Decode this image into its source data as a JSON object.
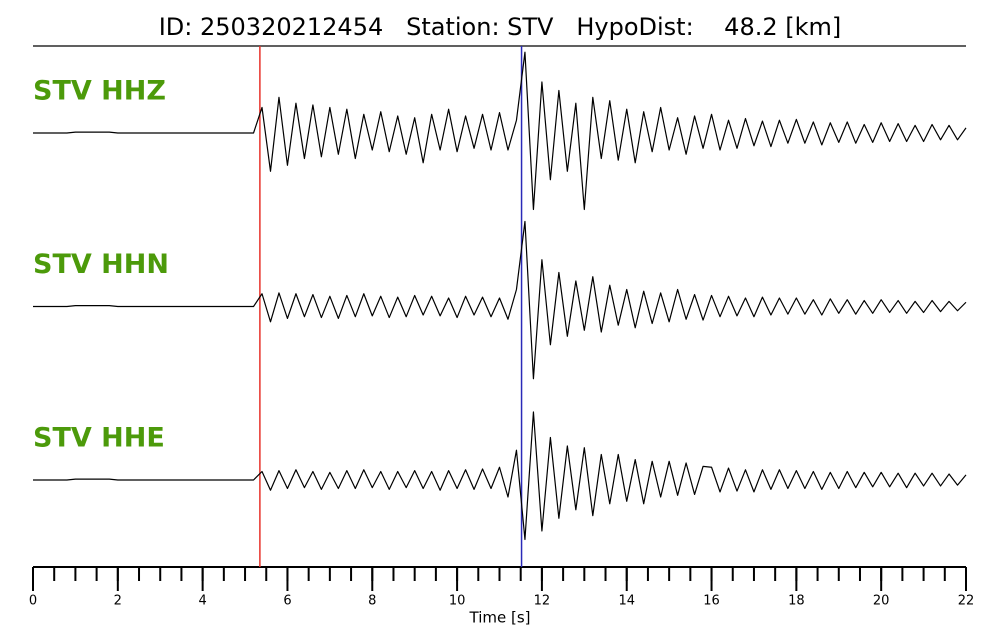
{
  "chart_data": {
    "type": "seismogram",
    "title": "ID: 250320212454   Station: STV   HypoDist:    48.2 [km]",
    "xlabel": "Time [s]",
    "xlim": [
      0,
      22
    ],
    "xticks": [
      0,
      2,
      4,
      6,
      8,
      10,
      12,
      14,
      16,
      18,
      20,
      22
    ],
    "xminorticks": [
      0,
      0.5,
      1,
      1.5,
      2,
      2.5,
      3,
      3.5,
      4,
      4.5,
      5,
      5.5,
      6,
      6.5,
      7,
      7.5,
      8,
      8.5,
      9,
      9.5,
      10,
      10.5,
      11,
      11.5,
      12,
      12.5,
      13,
      13.5,
      14,
      14.5,
      15,
      15.5,
      16,
      16.5,
      17,
      17.5,
      18,
      18.5,
      19,
      19.5,
      20,
      20.5,
      21,
      21.5,
      22
    ],
    "ylim": [
      -1,
      1
    ],
    "label_color": "#4c9a0a",
    "trace_color": "#000000",
    "picks": [
      {
        "time": 5.35,
        "color": "#e8322a"
      },
      {
        "time": 11.52,
        "color": "#2a2ab8"
      }
    ],
    "x": [
      0,
      0.2,
      0.4,
      0.6,
      0.8,
      1,
      1.2,
      1.4,
      1.6,
      1.8,
      2,
      2.2,
      2.4,
      2.6,
      2.8,
      3,
      3.2,
      3.4,
      3.6,
      3.8,
      4,
      4.2,
      4.4,
      4.6,
      4.8,
      5,
      5.2,
      5.4,
      5.6,
      5.8,
      6,
      6.2,
      6.4,
      6.6,
      6.8,
      7,
      7.2,
      7.4,
      7.6,
      7.8,
      8,
      8.2,
      8.4,
      8.6,
      8.8,
      9,
      9.2,
      9.4,
      9.6,
      9.8,
      10,
      10.2,
      10.4,
      10.6,
      10.8,
      11,
      11.2,
      11.4,
      11.6,
      11.8,
      12,
      12.2,
      12.4,
      12.6,
      12.8,
      13,
      13.2,
      13.4,
      13.6,
      13.8,
      14,
      14.2,
      14.4,
      14.6,
      14.8,
      15,
      15.2,
      15.4,
      15.6,
      15.8,
      16,
      16.2,
      16.4,
      16.6,
      16.8,
      17,
      17.2,
      17.4,
      17.6,
      17.8,
      18,
      18.2,
      18.4,
      18.6,
      18.8,
      19,
      19.2,
      19.4,
      19.6,
      19.8,
      20,
      20.2,
      20.4,
      20.6,
      20.8,
      21,
      21.2,
      21.4,
      21.6,
      21.8,
      22
    ],
    "series": [
      {
        "name": "STV HHZ",
        "values": [
          0,
          0,
          0,
          0,
          0,
          0.01,
          0.01,
          0.01,
          0.01,
          0.01,
          0,
          0,
          0,
          0,
          0,
          0,
          0,
          0,
          0,
          0,
          0,
          0,
          0,
          0,
          0,
          0,
          0,
          0.3,
          -0.45,
          0.42,
          -0.38,
          0.35,
          -0.3,
          0.33,
          -0.28,
          0.3,
          -0.25,
          0.28,
          -0.3,
          0.22,
          -0.2,
          0.25,
          -0.22,
          0.2,
          -0.25,
          0.18,
          -0.35,
          0.22,
          -0.2,
          0.28,
          -0.22,
          0.2,
          -0.18,
          0.22,
          -0.2,
          0.24,
          -0.2,
          0.15,
          0.95,
          -0.9,
          0.6,
          -0.55,
          0.5,
          -0.45,
          0.35,
          -0.9,
          0.42,
          -0.3,
          0.38,
          -0.32,
          0.28,
          -0.35,
          0.25,
          -0.22,
          0.3,
          -0.2,
          0.18,
          -0.25,
          0.2,
          -0.18,
          0.22,
          -0.2,
          0.15,
          -0.18,
          0.17,
          -0.15,
          0.14,
          -0.16,
          0.15,
          -0.12,
          0.16,
          -0.12,
          0.13,
          -0.14,
          0.12,
          -0.11,
          0.13,
          -0.12,
          0.1,
          -0.11,
          0.12,
          -0.1,
          0.11,
          -0.1,
          0.09,
          -0.1,
          0.1,
          -0.08,
          0.09,
          -0.08,
          0.06
        ]
      },
      {
        "name": "STV HHN",
        "values": [
          0,
          0,
          0,
          0,
          0,
          0.01,
          0.01,
          0.01,
          0.01,
          0.01,
          0,
          0,
          0,
          0,
          0,
          0,
          0,
          0,
          0,
          0,
          0,
          0,
          0,
          0,
          0,
          0,
          0,
          0.15,
          -0.18,
          0.16,
          -0.14,
          0.15,
          -0.12,
          0.14,
          -0.13,
          0.12,
          -0.14,
          0.13,
          -0.12,
          0.15,
          -0.11,
          0.12,
          -0.13,
          0.11,
          -0.12,
          0.13,
          -0.1,
          0.12,
          -0.11,
          0.1,
          -0.13,
          0.12,
          -0.1,
          0.11,
          -0.12,
          0.1,
          -0.15,
          0.2,
          1.0,
          -0.85,
          0.55,
          -0.45,
          0.4,
          -0.35,
          0.3,
          -0.28,
          0.35,
          -0.3,
          0.25,
          -0.22,
          0.2,
          -0.25,
          0.18,
          -0.2,
          0.16,
          -0.18,
          0.2,
          -0.15,
          0.14,
          -0.16,
          0.13,
          -0.12,
          0.12,
          -0.11,
          0.1,
          -0.12,
          0.11,
          -0.1,
          0.1,
          -0.09,
          0.1,
          -0.09,
          0.08,
          -0.1,
          0.09,
          -0.08,
          0.08,
          -0.09,
          0.07,
          -0.08,
          0.08,
          -0.07,
          0.07,
          -0.08,
          0.06,
          -0.07,
          0.07,
          -0.06,
          0.06,
          -0.05,
          0.05
        ]
      },
      {
        "name": "STV HHE",
        "values": [
          0,
          0,
          0,
          0,
          0,
          0.01,
          0.01,
          0.01,
          0.01,
          0.01,
          0,
          0,
          0,
          0,
          0,
          0,
          0,
          0,
          0,
          0,
          0,
          0,
          0,
          0,
          0,
          0,
          0,
          0.1,
          -0.12,
          0.11,
          -0.1,
          0.12,
          -0.09,
          0.1,
          -0.11,
          0.09,
          -0.1,
          0.11,
          -0.1,
          0.12,
          -0.09,
          0.1,
          -0.11,
          0.1,
          -0.09,
          0.11,
          -0.1,
          0.1,
          -0.12,
          0.11,
          -0.1,
          0.12,
          -0.11,
          0.13,
          -0.1,
          0.15,
          -0.2,
          0.35,
          -0.7,
          0.8,
          -0.6,
          0.5,
          -0.45,
          0.4,
          -0.35,
          0.38,
          -0.42,
          0.3,
          -0.28,
          0.3,
          -0.25,
          0.24,
          -0.28,
          0.22,
          -0.2,
          0.22,
          -0.18,
          0.2,
          -0.17,
          0.16,
          0.15,
          -0.14,
          0.14,
          -0.13,
          0.12,
          -0.14,
          0.12,
          -0.11,
          0.12,
          -0.1,
          0.11,
          -0.1,
          0.1,
          -0.11,
          0.09,
          -0.1,
          0.1,
          -0.09,
          0.09,
          -0.08,
          0.09,
          -0.08,
          0.08,
          -0.09,
          0.08,
          -0.07,
          0.08,
          -0.07,
          0.07,
          -0.06,
          0.06
        ]
      }
    ]
  }
}
